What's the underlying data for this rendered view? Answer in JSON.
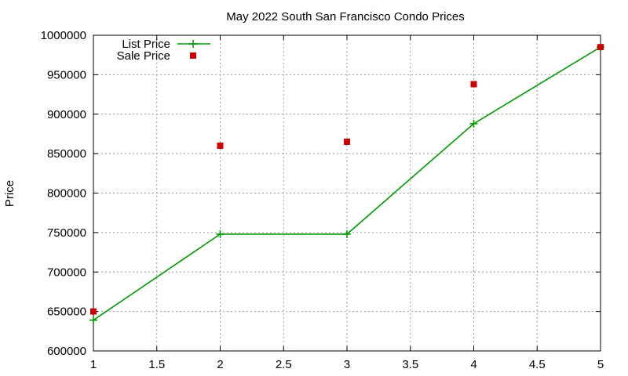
{
  "chart_data": {
    "type": "line",
    "title": "May 2022 South San Francisco Condo Prices",
    "xlabel": "",
    "ylabel": "Price",
    "xlim": [
      1,
      5
    ],
    "ylim": [
      600000,
      1000000
    ],
    "x_ticks": [
      "1",
      "1.5",
      "2",
      "2.5",
      "3",
      "3.5",
      "4",
      "4.5",
      "5"
    ],
    "y_ticks": [
      "600000",
      "650000",
      "700000",
      "750000",
      "800000",
      "850000",
      "900000",
      "950000",
      "1000000"
    ],
    "grid": true,
    "legend_position": "top-left",
    "series": [
      {
        "name": "List Price",
        "style": "line+cross",
        "color": "#009900",
        "x": [
          1,
          2,
          3,
          4,
          5
        ],
        "y": [
          639000,
          748000,
          748000,
          888000,
          985000
        ]
      },
      {
        "name": "Sale Price",
        "style": "square",
        "color": "#cc0000",
        "x": [
          1,
          2,
          3,
          4,
          5
        ],
        "y": [
          650000,
          860000,
          865000,
          938000,
          985000
        ]
      }
    ]
  }
}
